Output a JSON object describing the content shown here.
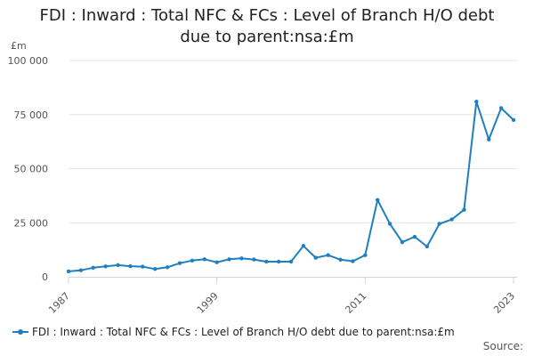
{
  "chart_data": {
    "type": "line",
    "title_lines": [
      "FDI : Inward : Total NFC & FCs : Level of Branch H/O debt",
      "due to parent:nsa:£m"
    ],
    "unit_label": "£m",
    "x": [
      1987,
      1988,
      1989,
      1990,
      1991,
      1992,
      1993,
      1994,
      1995,
      1996,
      1997,
      1998,
      1999,
      2000,
      2001,
      2002,
      2003,
      2004,
      2005,
      2006,
      2007,
      2008,
      2009,
      2010,
      2011,
      2012,
      2013,
      2014,
      2015,
      2016,
      2017,
      2018,
      2019,
      2020,
      2021,
      2022,
      2023
    ],
    "series": [
      {
        "name": "FDI : Inward : Total NFC & FCs : Level of Branch H/O debt due to parent:nsa:£m",
        "color": "#1f7fc0",
        "values": [
          2500,
          3000,
          4200,
          4800,
          5400,
          4900,
          4700,
          3600,
          4400,
          6300,
          7500,
          8100,
          6700,
          8100,
          8500,
          8000,
          7000,
          7000,
          7000,
          14300,
          8800,
          10000,
          7900,
          7200,
          10000,
          35500,
          24500,
          16000,
          18500,
          14000,
          24500,
          26500,
          31000,
          81000,
          63500,
          78000,
          72500
        ]
      }
    ],
    "x_ticks": [
      "1987",
      "1999",
      "2011",
      "2023"
    ],
    "x_tick_values": [
      1987,
      1999,
      2011,
      2023
    ],
    "y_ticks": [
      "0",
      "25 000",
      "50 000",
      "75 000",
      "100 000"
    ],
    "y_tick_values": [
      0,
      25000,
      50000,
      75000,
      100000
    ],
    "ylim": [
      0,
      100000
    ],
    "xlim": [
      1987,
      2023
    ],
    "grid": "horizontal",
    "legend_position": "bottom"
  },
  "legend_label": "FDI : Inward : Total NFC & FCs : Level of Branch H/O debt due to parent:nsa:£m",
  "source_label": "Source:"
}
